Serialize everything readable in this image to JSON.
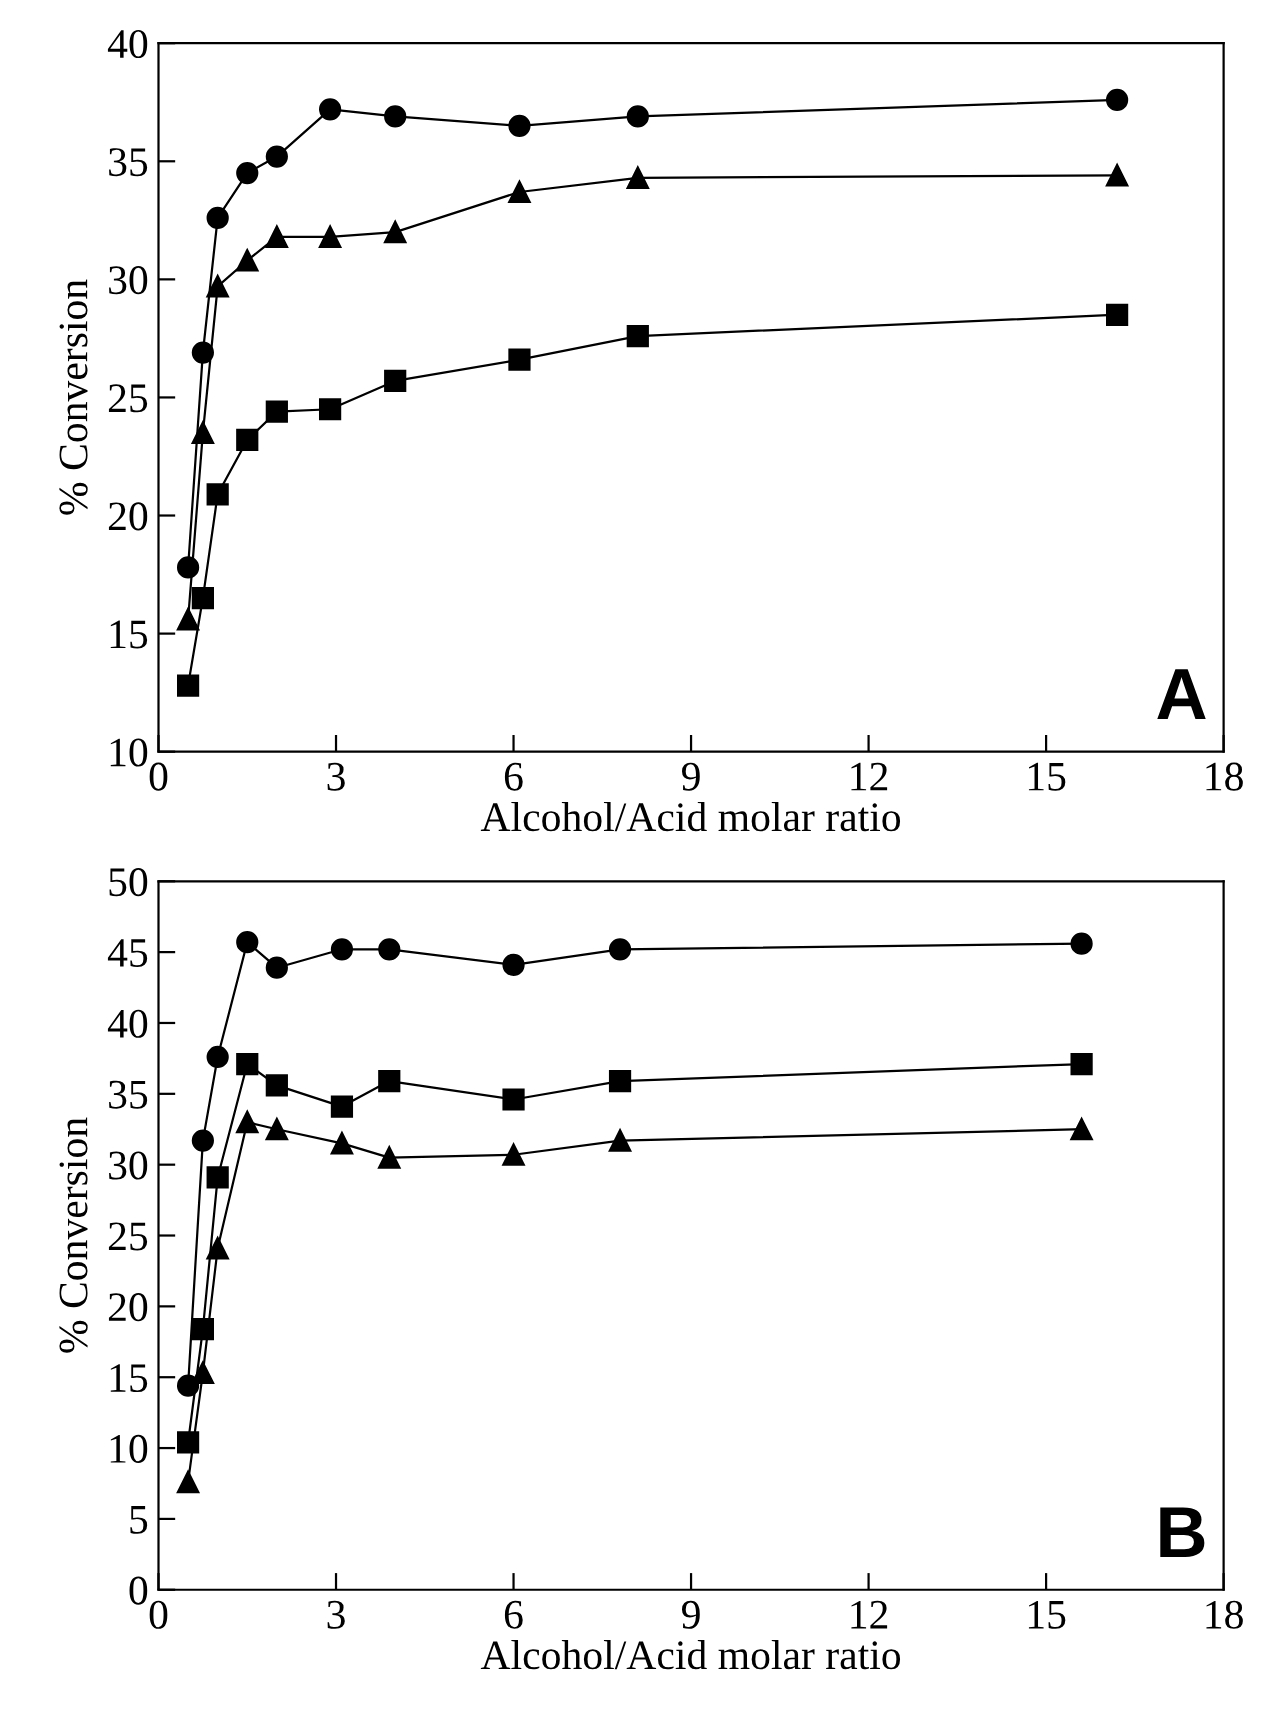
{
  "chart_data": [
    {
      "type": "line",
      "xlabel": "Alcohol/Acid molar ratio",
      "ylabel": "% Conversion",
      "annotations": [
        "A"
      ],
      "x": [
        0.5,
        0.75,
        1,
        1.5,
        2,
        2.9,
        4,
        6.1,
        8.1,
        16.2
      ],
      "xlim": [
        0,
        18
      ],
      "xticks": [
        0,
        3,
        6,
        9,
        12,
        15,
        18
      ],
      "ylim": [
        10,
        40
      ],
      "yticks": [
        10,
        15,
        20,
        25,
        30,
        35,
        40
      ],
      "grid": false,
      "legend": false,
      "line_style": "solid",
      "series": [
        {
          "color": "#000000",
          "marker": "circle",
          "values": [
            17.8,
            26.9,
            32.6,
            34.5,
            35.2,
            37.2,
            36.9,
            36.5,
            36.9,
            37.6
          ]
        },
        {
          "color": "#000000",
          "marker": "triangle",
          "values": [
            15.6,
            23.5,
            29.7,
            30.8,
            31.8,
            31.8,
            32.0,
            33.7,
            34.3,
            34.4
          ]
        },
        {
          "color": "#000000",
          "marker": "square",
          "values": [
            12.8,
            16.5,
            20.9,
            23.2,
            24.4,
            24.5,
            25.7,
            26.6,
            27.6,
            28.5
          ]
        }
      ]
    },
    {
      "type": "line",
      "xlabel": "Alcohol/Acid molar ratio",
      "ylabel": "% Conversion",
      "annotations": [
        "B"
      ],
      "x": [
        0.5,
        0.75,
        1,
        1.5,
        2,
        3.1,
        3.9,
        6,
        7.8,
        15.6
      ],
      "xlim": [
        0,
        18
      ],
      "xticks": [
        0,
        3,
        6,
        9,
        12,
        15,
        18
      ],
      "ylim": [
        0,
        50
      ],
      "yticks": [
        0,
        5,
        10,
        15,
        20,
        25,
        30,
        35,
        40,
        45,
        50
      ],
      "grid": false,
      "legend": false,
      "line_style": "solid",
      "series": [
        {
          "color": "#000000",
          "marker": "circle",
          "values": [
            14.4,
            31.7,
            37.6,
            45.7,
            43.9,
            45.2,
            45.2,
            44.1,
            45.2,
            45.6
          ]
        },
        {
          "color": "#000000",
          "marker": "square",
          "values": [
            10.4,
            18.4,
            29.1,
            37.1,
            35.6,
            34.1,
            35.9,
            34.6,
            35.9,
            37.1
          ]
        },
        {
          "color": "#000000",
          "marker": "triangle",
          "values": [
            7.6,
            15.3,
            24.1,
            33.0,
            32.5,
            31.5,
            30.5,
            30.7,
            31.7,
            32.5
          ]
        }
      ]
    }
  ]
}
